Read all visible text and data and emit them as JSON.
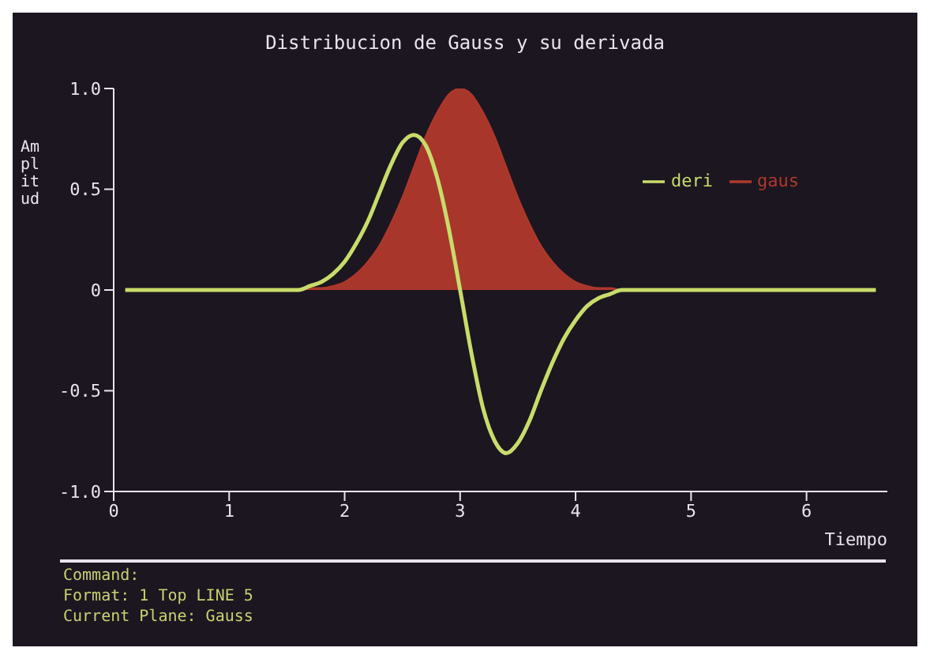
{
  "chart_data": {
    "type": "line",
    "title": "Distribucion de Gauss y su derivada",
    "xlabel": "Tiempo",
    "ylabel": "Amplitud",
    "x": [
      0.1,
      1.6,
      1.7,
      1.8,
      1.9,
      2.0,
      2.1,
      2.2,
      2.3,
      2.4,
      2.5,
      2.6,
      2.7,
      2.8,
      2.9,
      3.0,
      3.1,
      3.2,
      3.3,
      3.4,
      3.5,
      3.6,
      3.7,
      3.8,
      3.9,
      4.0,
      4.1,
      4.2,
      4.3,
      4.4,
      6.6
    ],
    "series": [
      {
        "name": "gaus",
        "type": "area",
        "color": "#b0382c",
        "values": [
          0,
          0,
          0.01,
          0.01,
          0.02,
          0.04,
          0.08,
          0.14,
          0.22,
          0.33,
          0.46,
          0.61,
          0.76,
          0.88,
          0.97,
          1,
          0.97,
          0.88,
          0.76,
          0.61,
          0.46,
          0.33,
          0.22,
          0.14,
          0.08,
          0.04,
          0.02,
          0.01,
          0.01,
          0,
          0
        ]
      },
      {
        "name": "deri",
        "color": "#c8dc6a",
        "values": [
          0,
          0,
          0.02,
          0.04,
          0.08,
          0.14,
          0.23,
          0.34,
          0.48,
          0.62,
          0.73,
          0.77,
          0.72,
          0.56,
          0.31,
          0,
          -0.32,
          -0.59,
          -0.75,
          -0.81,
          -0.76,
          -0.65,
          -0.5,
          -0.36,
          -0.24,
          -0.15,
          -0.08,
          -0.04,
          -0.02,
          0,
          0
        ]
      }
    ],
    "xlim": [
      0,
      6.7
    ],
    "xticks": [
      0,
      1,
      2,
      3,
      4,
      5,
      6
    ],
    "ylim": [
      -1,
      1
    ],
    "yticks": [
      {
        "value": -1,
        "label": "-1.0"
      },
      {
        "value": -0.5,
        "label": "-0.5"
      },
      0,
      {
        "value": 0.5,
        "label": "0.5"
      },
      {
        "value": 1,
        "label": "1.0"
      }
    ],
    "grid": false,
    "legend": "top right",
    "marker": "none",
    "line_style": "solid",
    "annotations": [
      "Command:",
      "Format: 1 Top LINE 5",
      "Current Plane: Gauss"
    ]
  }
}
